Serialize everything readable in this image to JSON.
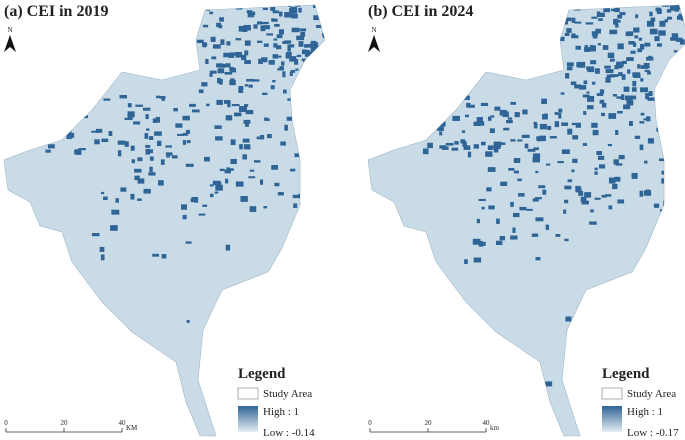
{
  "panels": [
    {
      "title": "(a) CEI in 2019",
      "north": "N",
      "legend": {
        "title": "Legend",
        "study_area": "Study Area",
        "high": "High : 1",
        "low": "Low : -0.14"
      },
      "scale": {
        "ticks": [
          "0",
          "20",
          "40"
        ],
        "unit": "KM"
      }
    },
    {
      "title": "(b) CEI in 2024",
      "north": "N",
      "legend": {
        "title": "Legend",
        "study_area": "Study Area",
        "high": "High : 1",
        "low": "Low : -0.17"
      },
      "scale": {
        "ticks": [
          "0",
          "20",
          "40"
        ],
        "unit": "km"
      }
    }
  ]
}
